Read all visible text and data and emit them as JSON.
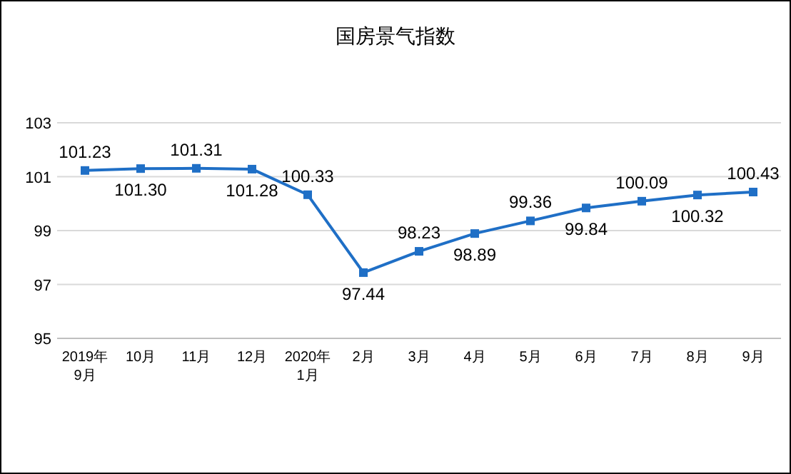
{
  "chart_data": {
    "type": "line",
    "title": "国房景气指数",
    "categories": [
      "2019年\n9月",
      "10月",
      "11月",
      "12月",
      "2020年\n1月",
      "2月",
      "3月",
      "4月",
      "5月",
      "6月",
      "7月",
      "8月",
      "9月"
    ],
    "series": [
      {
        "color": "#1f6fc6",
        "values": [
          101.23,
          101.3,
          101.31,
          101.28,
          100.33,
          97.44,
          98.23,
          98.89,
          99.36,
          99.84,
          100.09,
          100.32,
          100.43
        ],
        "value_labels": [
          "101.23",
          "101.30",
          "101.31",
          "101.28",
          "100.33",
          "97.44",
          "98.23",
          "98.89",
          "99.36",
          "99.84",
          "100.09",
          "100.32",
          "100.43"
        ]
      }
    ],
    "ylim": [
      95,
      103
    ],
    "yticks": [
      95,
      97,
      99,
      101,
      103
    ],
    "grid": "y",
    "marker": "square",
    "line_style": "solid"
  }
}
